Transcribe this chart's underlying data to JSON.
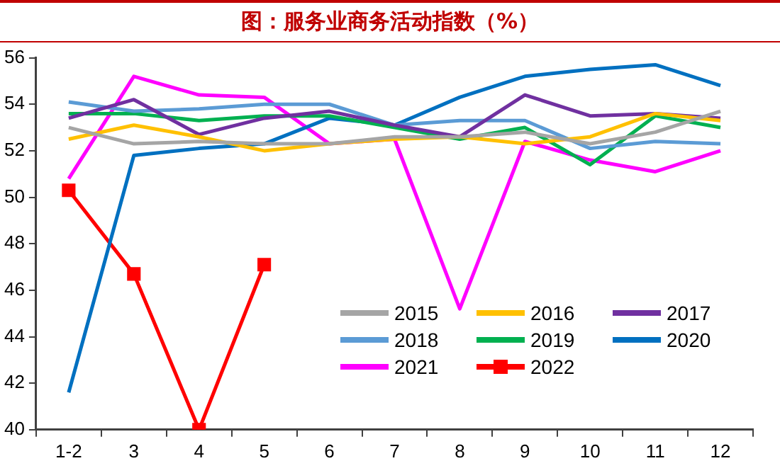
{
  "chart_data": {
    "type": "line",
    "title": "图：服务业商务活动指数（%）",
    "categories": [
      "1-2",
      "3",
      "4",
      "5",
      "6",
      "7",
      "8",
      "9",
      "10",
      "11",
      "12"
    ],
    "ylim": [
      40,
      56
    ],
    "yticks": [
      40,
      42,
      44,
      46,
      48,
      50,
      52,
      54,
      56
    ],
    "grid": false,
    "legend": "bottom right",
    "line_style": "solid",
    "series": [
      {
        "name": "2015",
        "color": "#a5a5a5",
        "values": [
          53.0,
          52.3,
          52.4,
          52.3,
          52.3,
          52.6,
          52.6,
          52.8,
          52.3,
          52.8,
          53.7
        ]
      },
      {
        "name": "2016",
        "color": "#ffc000",
        "values": [
          52.5,
          53.1,
          52.6,
          52.0,
          52.3,
          52.5,
          52.6,
          52.3,
          52.6,
          53.6,
          53.3
        ]
      },
      {
        "name": "2017",
        "color": "#7030a0",
        "values": [
          53.4,
          54.2,
          52.7,
          53.4,
          53.7,
          53.1,
          52.6,
          54.4,
          53.5,
          53.6,
          53.4
        ]
      },
      {
        "name": "2018",
        "color": "#5b9bd5",
        "values": [
          54.1,
          53.7,
          53.8,
          54.0,
          54.0,
          53.1,
          53.3,
          53.3,
          52.1,
          52.4,
          52.3
        ]
      },
      {
        "name": "2019",
        "color": "#00b050",
        "values": [
          53.6,
          53.6,
          53.3,
          53.5,
          53.5,
          53.0,
          52.5,
          53.0,
          51.4,
          53.5,
          53.0
        ]
      },
      {
        "name": "2020",
        "color": "#0070c0",
        "values": [
          41.6,
          51.8,
          52.1,
          52.3,
          53.4,
          53.1,
          54.3,
          55.2,
          55.5,
          55.7,
          54.8
        ]
      },
      {
        "name": "2021",
        "color": "#ff00ff",
        "values": [
          50.8,
          55.2,
          54.4,
          54.3,
          52.3,
          52.5,
          45.2,
          52.4,
          51.6,
          51.1,
          52.0
        ]
      },
      {
        "name": "2022",
        "color": "#ff0000",
        "marker": "square",
        "values": [
          50.3,
          46.7,
          40.0,
          47.1,
          null,
          null,
          null,
          null,
          null,
          null,
          null
        ]
      }
    ]
  }
}
